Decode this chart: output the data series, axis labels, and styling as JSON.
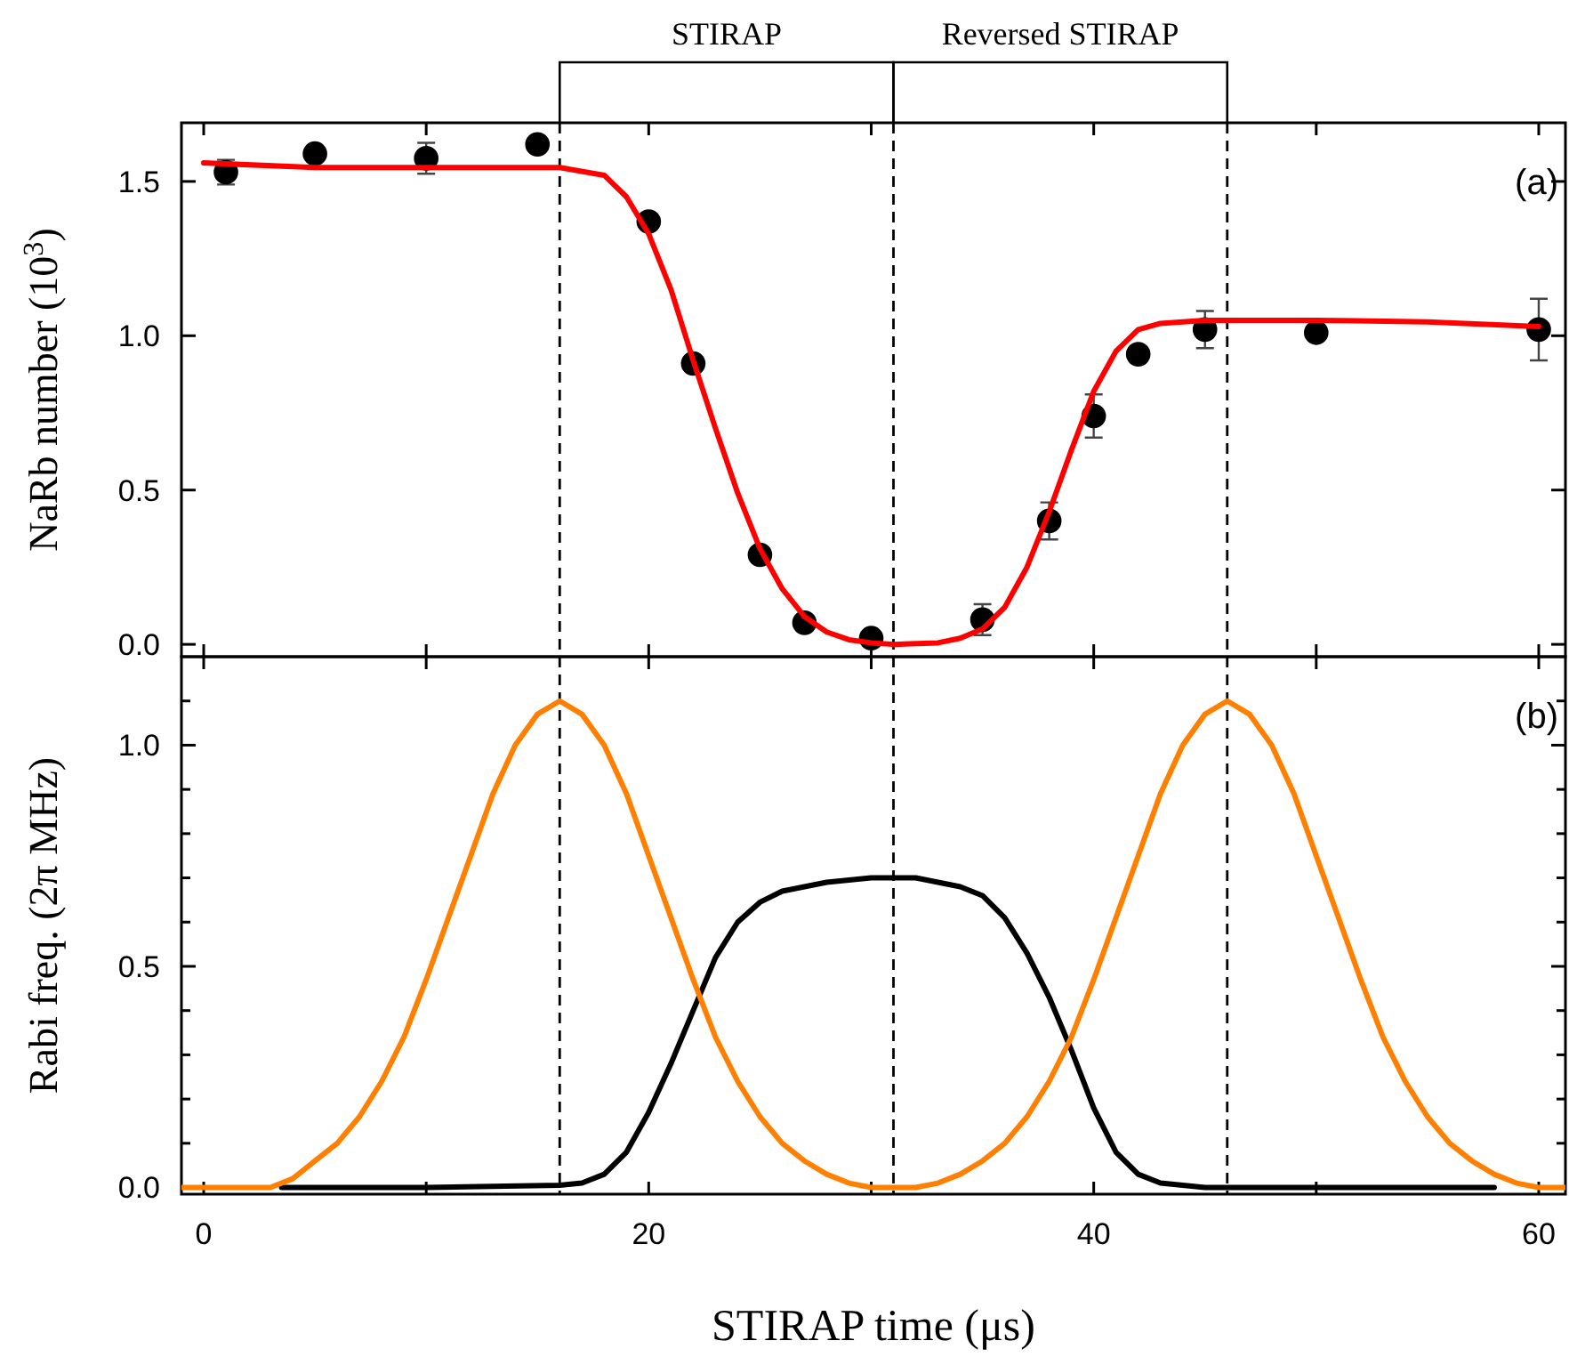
{
  "chart_data": [
    {
      "type": "scatter",
      "ylabel": "NaRb number (10$^{3}$)",
      "xlim": [
        -1,
        61.2
      ],
      "ylim": [
        -0.04,
        1.69
      ],
      "xticks": [
        0,
        {
          "value": 10,
          "label": null
        },
        20,
        {
          "value": 30,
          "label": null
        },
        40,
        {
          "value": 50,
          "label": null
        },
        60
      ],
      "yticks": [
        {
          "value": 0,
          "label": "0.0"
        },
        {
          "value": 0.5,
          "label": "0.5"
        },
        {
          "value": 1,
          "label": "1.0"
        },
        {
          "value": 1.5,
          "label": "1.5"
        }
      ],
      "tick_labels": "y",
      "series": [
        {
          "marker": "circle",
          "color": "#000000",
          "x": [
            1,
            5,
            10,
            15,
            20,
            22,
            25,
            27,
            30,
            35,
            38,
            40,
            42,
            45,
            50,
            60
          ],
          "values": [
            1.53,
            1.59,
            1.575,
            1.62,
            1.37,
            0.91,
            0.29,
            0.07,
            0.02,
            0.08,
            0.4,
            0.74,
            0.94,
            1.02,
            1.01,
            1.02
          ],
          "errors": [
            0.04,
            null,
            0.05,
            null,
            null,
            null,
            null,
            null,
            null,
            0.05,
            0.06,
            0.07,
            null,
            0.06,
            null,
            0.1
          ]
        },
        {
          "type": "line",
          "color": "#ff0000",
          "x": [
            0,
            5,
            10,
            16,
            18,
            19,
            20,
            21,
            22,
            23,
            24,
            25,
            26,
            27,
            28,
            29,
            30,
            31,
            33,
            34,
            35,
            36,
            37,
            38,
            39,
            40,
            41,
            42,
            43,
            45,
            50,
            55,
            60
          ],
          "values": [
            1.56,
            1.545,
            1.545,
            1.545,
            1.52,
            1.45,
            1.33,
            1.15,
            0.92,
            0.7,
            0.49,
            0.31,
            0.18,
            0.09,
            0.04,
            0.015,
            0.005,
            0.0,
            0.005,
            0.02,
            0.05,
            0.12,
            0.25,
            0.43,
            0.63,
            0.82,
            0.95,
            1.02,
            1.04,
            1.05,
            1.05,
            1.045,
            1.03
          ]
        }
      ],
      "ref_lines": [
        {
          "axis": "x",
          "value": 16,
          "line_style": "dashed"
        },
        {
          "axis": "x",
          "value": 31,
          "line_style": "dashed"
        },
        {
          "axis": "x",
          "value": 46,
          "line_style": "dashed"
        }
      ],
      "annotations": [
        "STIRAP",
        "Reversed STIRAP",
        "(a)"
      ]
    },
    {
      "type": "line",
      "xlabel": "STIRAP time (μs)",
      "ylabel": "Rabi freq. (2π MHz)",
      "xlim": [
        -1,
        61.2
      ],
      "ylim": [
        -0.015,
        1.2
      ],
      "xticks": [
        0,
        {
          "value": 10,
          "label": null
        },
        20,
        {
          "value": 30,
          "label": null
        },
        40,
        {
          "value": 50,
          "label": null
        },
        60
      ],
      "yticks": [
        {
          "value": 0,
          "label": "0.0"
        },
        {
          "value": 0.1,
          "label": null
        },
        {
          "value": 0.2,
          "label": null
        },
        {
          "value": 0.3,
          "label": null
        },
        {
          "value": 0.4,
          "label": null
        },
        0.5,
        {
          "value": 0.6,
          "label": null
        },
        {
          "value": 0.7,
          "label": null
        },
        {
          "value": 0.8,
          "label": null
        },
        {
          "value": 0.9,
          "label": null
        },
        {
          "value": 1,
          "label": "1.0"
        },
        {
          "value": 1.1,
          "label": null
        }
      ],
      "series": [
        {
          "color": "#000000",
          "x": [
            3.5,
            10,
            16,
            17,
            18,
            19,
            20,
            21,
            22,
            23,
            24,
            25,
            26,
            28,
            30,
            32,
            34,
            35,
            36,
            37,
            38,
            39,
            40,
            41,
            42,
            43,
            45,
            58
          ],
          "values": [
            0,
            0,
            0.005,
            0.01,
            0.03,
            0.08,
            0.17,
            0.28,
            0.4,
            0.52,
            0.6,
            0.645,
            0.67,
            0.69,
            0.7,
            0.7,
            0.68,
            0.66,
            0.61,
            0.53,
            0.43,
            0.31,
            0.18,
            0.08,
            0.03,
            0.01,
            0,
            0
          ]
        },
        {
          "color": "#ff8000",
          "x": [
            -1,
            3,
            4,
            5,
            6,
            7,
            8,
            9,
            10,
            11,
            12,
            13,
            14,
            15,
            16,
            17,
            18,
            19,
            20,
            21,
            22,
            23,
            24,
            25,
            26,
            27,
            28,
            29,
            30,
            32,
            33,
            34,
            35,
            36,
            37,
            38,
            39,
            40,
            41,
            42,
            43,
            44,
            45,
            46,
            47,
            48,
            49,
            50,
            51,
            52,
            53,
            54,
            55,
            56,
            57,
            58,
            59,
            60,
            61.2
          ],
          "values": [
            0,
            0,
            0.02,
            0.06,
            0.1,
            0.16,
            0.24,
            0.34,
            0.47,
            0.61,
            0.75,
            0.89,
            1.0,
            1.07,
            1.1,
            1.07,
            1.0,
            0.89,
            0.75,
            0.61,
            0.47,
            0.34,
            0.24,
            0.16,
            0.1,
            0.06,
            0.03,
            0.01,
            0,
            0,
            0.01,
            0.03,
            0.06,
            0.1,
            0.16,
            0.24,
            0.34,
            0.47,
            0.61,
            0.75,
            0.89,
            1.0,
            1.07,
            1.1,
            1.07,
            1.0,
            0.89,
            0.75,
            0.61,
            0.47,
            0.34,
            0.24,
            0.16,
            0.1,
            0.06,
            0.03,
            0.01,
            0,
            0
          ]
        }
      ],
      "ref_lines": [
        {
          "axis": "x",
          "value": 16,
          "line_style": "dashed"
        },
        {
          "axis": "x",
          "value": 31,
          "line_style": "dashed"
        },
        {
          "axis": "x",
          "value": 46,
          "line_style": "dashed"
        }
      ],
      "annotations": [
        "(b)"
      ]
    }
  ]
}
